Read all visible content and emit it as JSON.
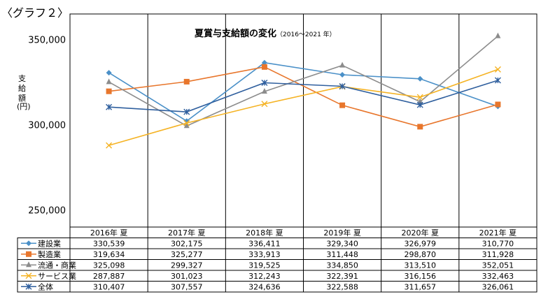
{
  "caption": "〈グラフ２〉",
  "chart_data": {
    "type": "line",
    "title": "夏賞与支給額の変化",
    "subtitle": "（2016～2021 年）",
    "ylabel_chars": [
      "支",
      "給",
      "額"
    ],
    "ylabel_unit": "(円)",
    "ylim": [
      240000,
      365000
    ],
    "yticks": [
      250000,
      300000,
      350000
    ],
    "ytick_labels": [
      "250,000",
      "300,000",
      "350,000"
    ],
    "categories": [
      "2016年 夏",
      "2017年 夏",
      "2018年 夏",
      "2019年 夏",
      "2020年 夏",
      "2021年 夏"
    ],
    "series": [
      {
        "name": "建設業",
        "color": "#4a90c8",
        "marker": "diamond",
        "values": [
          330539,
          302175,
          336411,
          329340,
          326979,
          310770
        ],
        "labels": [
          "330,539",
          "302,175",
          "336,411",
          "329,340",
          "326,979",
          "310,770"
        ]
      },
      {
        "name": "製造業",
        "color": "#e8762c",
        "marker": "square",
        "values": [
          319634,
          325277,
          333913,
          311448,
          298870,
          311928
        ],
        "labels": [
          "319,634",
          "325,277",
          "333,913",
          "311,448",
          "298,870",
          "311,928"
        ]
      },
      {
        "name": "流通・商業",
        "color": "#8c8c8c",
        "marker": "triangle",
        "values": [
          325098,
          299327,
          319525,
          334850,
          313510,
          352051
        ],
        "labels": [
          "325,098",
          "299,327",
          "319,525",
          "334,850",
          "313,510",
          "352,051"
        ]
      },
      {
        "name": "サービス業",
        "color": "#f5b324",
        "marker": "x",
        "values": [
          287887,
          301023,
          312243,
          322391,
          316156,
          332463
        ],
        "labels": [
          "287,887",
          "301,023",
          "312,243",
          "322,391",
          "316,156",
          "332,463"
        ]
      },
      {
        "name": "全体",
        "color": "#2f5f9e",
        "marker": "star",
        "values": [
          310407,
          307557,
          324636,
          322588,
          311657,
          326061
        ],
        "labels": [
          "310,407",
          "307,557",
          "324,636",
          "322,588",
          "311,657",
          "326,061"
        ]
      }
    ]
  }
}
